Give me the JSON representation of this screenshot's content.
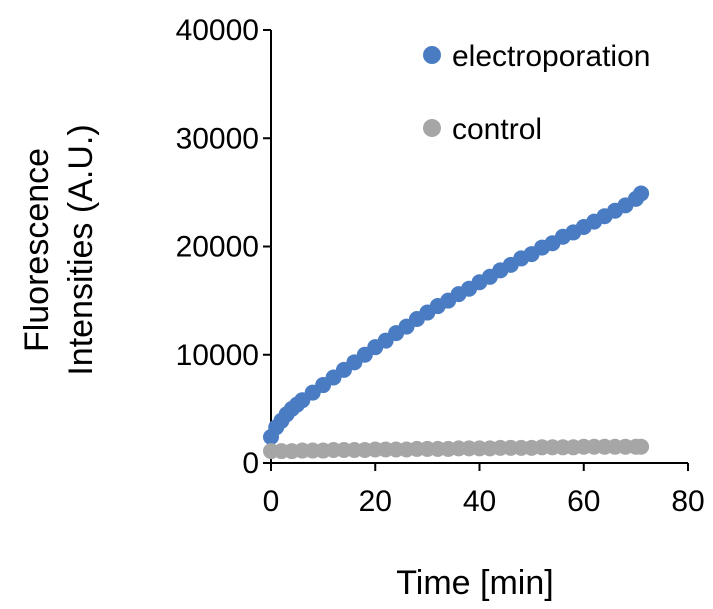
{
  "chart_data": {
    "type": "scatter",
    "xlabel": "Time [min]",
    "ylabel_lines": [
      "Fluorescence",
      "Intensities (A.U.)"
    ],
    "xlim": [
      0,
      80
    ],
    "ylim": [
      0,
      40000
    ],
    "x_ticks": [
      0,
      20,
      40,
      60,
      80
    ],
    "y_ticks": [
      0,
      10000,
      20000,
      30000,
      40000
    ],
    "grid": false,
    "legend_position": "top-right",
    "series": [
      {
        "name": "electroporation",
        "color": "#4a7cc4",
        "x": [
          0,
          1,
          2,
          3,
          4,
          5,
          6,
          8,
          10,
          12,
          14,
          16,
          18,
          20,
          22,
          24,
          26,
          28,
          30,
          32,
          34,
          36,
          38,
          40,
          42,
          44,
          46,
          48,
          50,
          52,
          54,
          56,
          58,
          60,
          62,
          64,
          66,
          68,
          70,
          71
        ],
        "y": [
          2400,
          3300,
          3900,
          4500,
          5000,
          5400,
          5800,
          6500,
          7200,
          7900,
          8600,
          9300,
          10000,
          10700,
          11300,
          12000,
          12600,
          13300,
          13900,
          14500,
          15000,
          15600,
          16100,
          16700,
          17200,
          17800,
          18300,
          18900,
          19300,
          19900,
          20300,
          20900,
          21300,
          21800,
          22300,
          22800,
          23300,
          23800,
          24400,
          24900
        ]
      },
      {
        "name": "control",
        "color": "#a6a6a6",
        "x": [
          0,
          2,
          4,
          6,
          8,
          10,
          12,
          14,
          16,
          18,
          20,
          22,
          24,
          26,
          28,
          30,
          32,
          34,
          36,
          38,
          40,
          42,
          44,
          46,
          48,
          50,
          52,
          54,
          56,
          58,
          60,
          62,
          64,
          66,
          68,
          70,
          71
        ],
        "y": [
          1100,
          1100,
          1100,
          1150,
          1150,
          1150,
          1200,
          1200,
          1200,
          1200,
          1250,
          1250,
          1250,
          1250,
          1300,
          1300,
          1300,
          1300,
          1350,
          1350,
          1350,
          1350,
          1400,
          1400,
          1400,
          1400,
          1450,
          1450,
          1450,
          1450,
          1500,
          1500,
          1500,
          1500,
          1500,
          1500,
          1500
        ]
      }
    ]
  }
}
